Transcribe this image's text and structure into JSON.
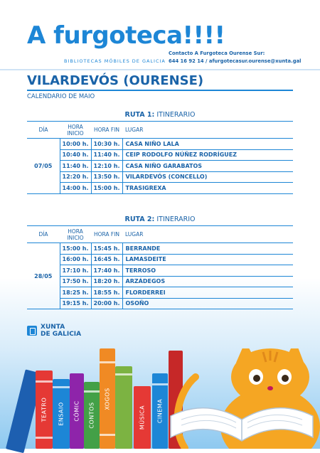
{
  "header": {
    "brand": "A furgoteca!!!!",
    "subtitle": "BIBLIOTECAS MÓBILES DE GALICIA",
    "contact_line1": "Contacto A Furgoteca Ourense Sur:",
    "contact_line2": "644 16 92 14 / afurgotecasur.ourense@xunta.gal"
  },
  "title": "VILARDEVÓS (OURENSE)",
  "month": "CALENDARIO DE MAIO",
  "columns": {
    "dia": "DÍA",
    "hora_inicio": "HORA INICIO",
    "hora_fin": "HORA FIN",
    "lugar": "LUGAR"
  },
  "routes": [
    {
      "label_bold": "RUTA 1:",
      "label": " ITINERARIO",
      "date": "07/05",
      "rows": [
        {
          "start": "10:00 h.",
          "end": "10:30 h.",
          "place": "CASA NIÑO LALA"
        },
        {
          "start": "10:40 h.",
          "end": "11:40 h.",
          "place": "CEIP RODOLFO NÚÑEZ RODRÍGUEZ"
        },
        {
          "start": "11:40 h.",
          "end": "12:10 h.",
          "place": "CASA NIÑO GARABATOS"
        },
        {
          "start": "12:20 h.",
          "end": "13:50 h.",
          "place": "VILARDEVÓS (CONCELLO)"
        },
        {
          "start": "14:00 h.",
          "end": "15:00 h.",
          "place": "TRASIGREXA"
        }
      ]
    },
    {
      "label_bold": "RUTA 2:",
      "label": " ITINERARIO",
      "date": "28/05",
      "rows": [
        {
          "start": "15:00 h.",
          "end": "15:45 h.",
          "place": "BERRANDE"
        },
        {
          "start": "16:00 h.",
          "end": "16:45 h.",
          "place": "LAMASDEITE"
        },
        {
          "start": "17:10 h.",
          "end": "17:40 h.",
          "place": "TERROSO"
        },
        {
          "start": "17:50 h.",
          "end": "18:20 h.",
          "place": "ARZÁDEGOS"
        },
        {
          "start": "18:25 h.",
          "end": "18:55 h.",
          "place": "FLORDERREI"
        },
        {
          "start": "19:15 h.",
          "end": "20:00 h.",
          "place": "OSOÑO"
        }
      ]
    }
  ],
  "footer": {
    "xunta_line1": "XUNTA",
    "xunta_line2": "DE GALICIA",
    "books": [
      "TEATRO",
      "ENSAIO",
      "CÓMIC",
      "CONTOS",
      "XOGOS",
      "MÚSICA",
      "CINEMA"
    ]
  },
  "colors": {
    "primary": "#1d86d6",
    "dark": "#1a63a8",
    "cat": "#f5a623"
  }
}
